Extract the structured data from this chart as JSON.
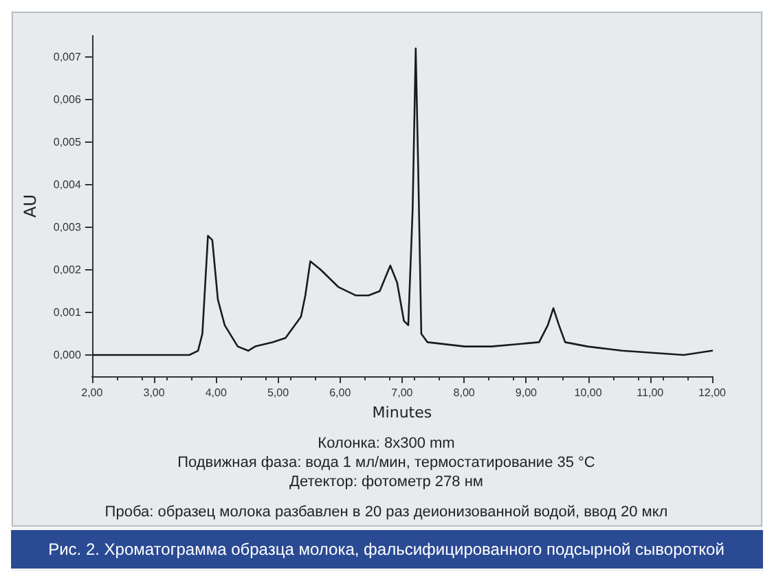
{
  "chart_data": {
    "type": "line",
    "xlabel": "Minutes",
    "ylabel": "AU",
    "x": [
      2.02,
      2.51,
      3.01,
      3.57,
      3.71,
      3.78,
      3.87,
      3.94,
      4.03,
      4.14,
      4.35,
      4.52,
      4.63,
      4.91,
      5.12,
      5.37,
      5.44,
      5.52,
      5.69,
      5.97,
      6.25,
      6.46,
      6.64,
      6.81,
      6.92,
      7.03,
      7.1,
      7.17,
      7.22,
      7.26,
      7.31,
      7.41,
      8.01,
      8.44,
      9.21,
      9.35,
      9.44,
      9.53,
      9.63,
      9.99,
      10.55,
      11.54,
      12.0
    ],
    "series": [
      {
        "color": "#1a1a1a",
        "values": [
          0.0,
          0.0,
          0.0,
          0.0,
          0.0001,
          0.0005,
          0.0028,
          0.0027,
          0.0013,
          0.0007,
          0.0002,
          0.0001,
          0.0002,
          0.0003,
          0.0004,
          0.0009,
          0.0014,
          0.0022,
          0.002,
          0.0016,
          0.0014,
          0.0014,
          0.0015,
          0.0021,
          0.0017,
          0.0008,
          0.0007,
          0.0034,
          0.0072,
          0.0044,
          0.0005,
          0.0003,
          0.0002,
          0.0002,
          0.0003,
          0.0007,
          0.0011,
          0.0007,
          0.0003,
          0.0002,
          0.0001,
          0.0,
          0.0001
        ]
      }
    ],
    "xlim": [
      2,
      12
    ],
    "xticks": [
      {
        "value": 2,
        "label": "2,00"
      },
      {
        "value": 3,
        "label": "3,00"
      },
      {
        "value": 4,
        "label": "4,00"
      },
      {
        "value": 5,
        "label": "5,00"
      },
      {
        "value": 6,
        "label": "6,00"
      },
      {
        "value": 7,
        "label": "7,00"
      },
      {
        "value": 8,
        "label": "8,00"
      },
      {
        "value": 9,
        "label": "9,00"
      },
      {
        "value": 10,
        "label": "10,00"
      },
      {
        "value": 11,
        "label": "11,00"
      },
      {
        "value": 12,
        "label": "12,00"
      }
    ],
    "ylim": [
      -0.0005,
      0.0075
    ],
    "yticks": [
      {
        "value": 0,
        "label": "0,000"
      },
      {
        "value": 0.001,
        "label": "0,001"
      },
      {
        "value": 0.002,
        "label": "0,002"
      },
      {
        "value": 0.003,
        "label": "0,003"
      },
      {
        "value": 0.004,
        "label": "0,004"
      },
      {
        "value": 0.005,
        "label": "0,005"
      },
      {
        "value": 0.006,
        "label": "0,006"
      },
      {
        "value": 0.007,
        "label": "0,007"
      }
    ],
    "grid": false,
    "marker": "none",
    "line_style": "solid",
    "annotations": [
      "Колонка: 8x300 mm",
      "Подвижная фаза: вода 1 мл/мин, термостатирование 35 °C",
      "Детектор: фотометр 278 нм",
      "Проба: образец молока разбавлен в 20 раз деионизованной водой, ввод 20 мкл",
      "Рис. 2. Хроматограмма образца молока, фальсифицированного подсырной сывороткой"
    ]
  }
}
